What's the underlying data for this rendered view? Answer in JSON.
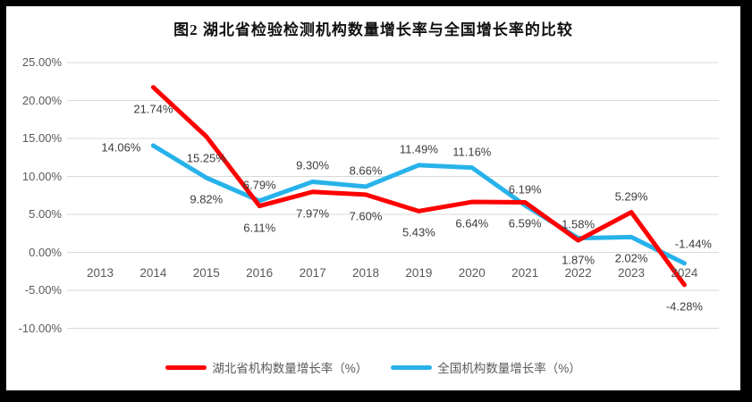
{
  "chart_data": {
    "type": "line",
    "title": "图2 湖北省检验检测机构数量增长率与全国增长率的比较",
    "categories": [
      "2013",
      "2014",
      "2015",
      "2016",
      "2017",
      "2018",
      "2019",
      "2020",
      "2021",
      "2022",
      "2023",
      "2024"
    ],
    "series": [
      {
        "id": "national",
        "name": "全国机构数量增长率（%）",
        "color": "#27B2EA",
        "values": [
          null,
          14.06,
          9.82,
          6.79,
          9.3,
          8.66,
          11.49,
          11.16,
          6.19,
          1.87,
          2.02,
          -1.44
        ],
        "labels": [
          null,
          "14.06%",
          "9.82%",
          "6.79%",
          "9.30%",
          "8.66%",
          "11.49%",
          "11.16%",
          "6.19%",
          "1.87%",
          "2.02%",
          "-1.44%"
        ],
        "label_pos": [
          null,
          "left",
          "below",
          "above",
          "above",
          "above",
          "above",
          "above",
          "above",
          "below",
          "below",
          "above-right"
        ]
      },
      {
        "id": "hubei",
        "name": "湖北省机构数量增长率（%）",
        "color": "#FF0000",
        "values": [
          null,
          21.74,
          15.25,
          6.11,
          7.97,
          7.6,
          5.43,
          6.64,
          6.59,
          1.58,
          5.29,
          -4.28
        ],
        "labels": [
          null,
          "21.74%",
          "15.25%",
          "6.11%",
          "7.97%",
          "7.60%",
          "5.43%",
          "6.64%",
          "6.59%",
          "1.58%",
          "5.29%",
          "-4.28%"
        ],
        "label_pos": [
          null,
          "below",
          "below",
          "below",
          "below",
          "below",
          "below",
          "below",
          "below",
          "above",
          "above",
          "below"
        ]
      }
    ],
    "y_axis": {
      "min": -10,
      "max": 25,
      "step": 5,
      "tick_labels": [
        "25.00%",
        "20.00%",
        "15.00%",
        "10.00%",
        "5.00%",
        "0.00%",
        "-5.00%",
        "-10.00%"
      ]
    },
    "grid": true,
    "gridline_color": "#D9D9D9",
    "legend_position": "bottom",
    "legend": [
      {
        "label": "湖北省机构数量增长率（%）",
        "color": "#FF0000"
      },
      {
        "label": "全国机构数量增长率（%）",
        "color": "#27B2EA"
      }
    ]
  }
}
